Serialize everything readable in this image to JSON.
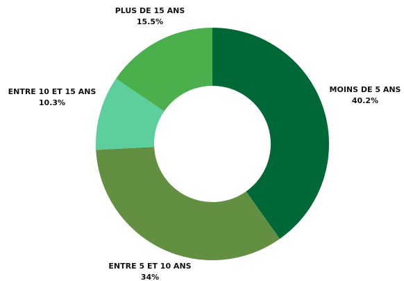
{
  "chart_data": {
    "type": "donut",
    "categories": [
      "MOINS DE 5 ANS",
      "ENTRE 5 ET 10 ANS",
      "ENTRE 10 ET 15 ANS",
      "PLUS DE 15 ANS"
    ],
    "values": [
      40.2,
      34,
      10.3,
      15.5
    ],
    "value_labels": [
      "40.2%",
      "34%",
      "10.3%",
      "15.5%"
    ],
    "colors": [
      "#006837",
      "#638f43",
      "#5ccf9d",
      "#4bb04b"
    ]
  }
}
